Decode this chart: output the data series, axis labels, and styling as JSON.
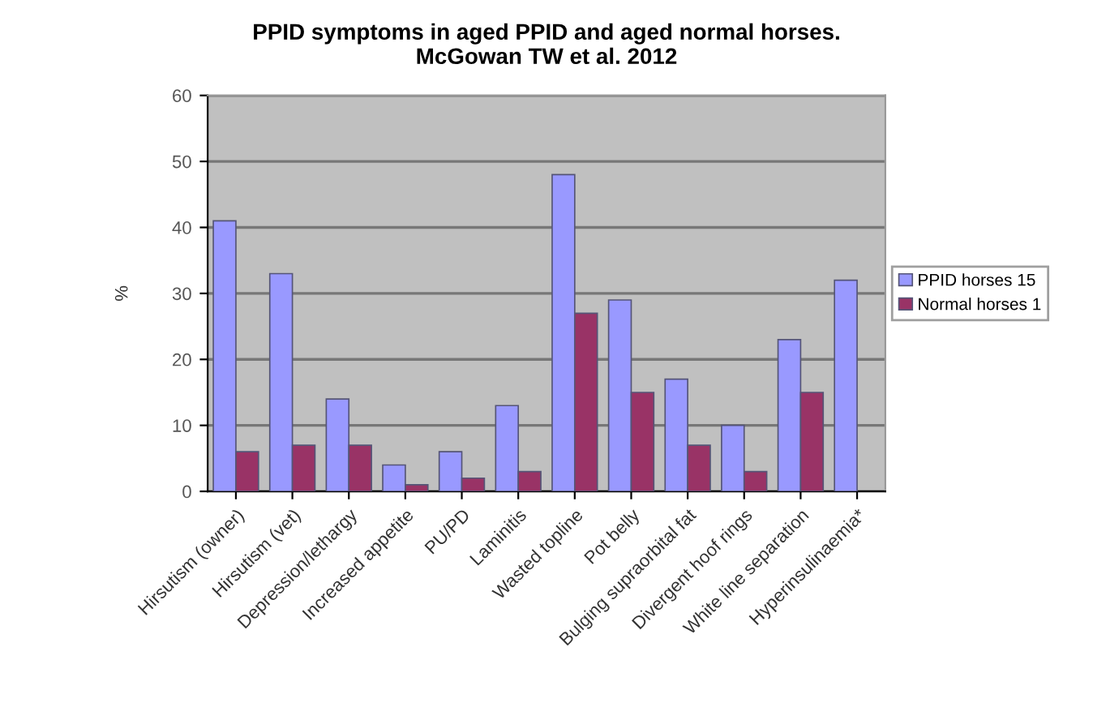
{
  "chart_data": {
    "type": "bar",
    "title": "PPID symptoms in aged PPID and aged normal horses.\nMcGowan TW et al. 2012",
    "ylabel": "%",
    "categories": [
      "Hirsutism (owner)",
      "Hirsutism (vet)",
      "Depression/lethargy",
      "Increased appetite",
      "PU/PD",
      "Laminitis",
      "Wasted topline",
      "Pot belly",
      "Bulging supraorbital fat",
      "Divergent hoof rings",
      "White line separation",
      "Hyperinsulinaemia*"
    ],
    "series": [
      {
        "name": "PPID horses 15",
        "color": "#9999ff",
        "values": [
          41,
          33,
          14,
          4,
          6,
          13,
          48,
          29,
          17,
          10,
          23,
          32
        ]
      },
      {
        "name": "Normal horses 1",
        "color": "#993366",
        "values": [
          6,
          7,
          7,
          1,
          2,
          3,
          27,
          15,
          7,
          3,
          15,
          null
        ]
      }
    ],
    "ylim": [
      0,
      60
    ],
    "yticks": [
      0,
      10,
      20,
      30,
      40,
      50,
      60
    ],
    "grid": "y",
    "legend": "right"
  }
}
